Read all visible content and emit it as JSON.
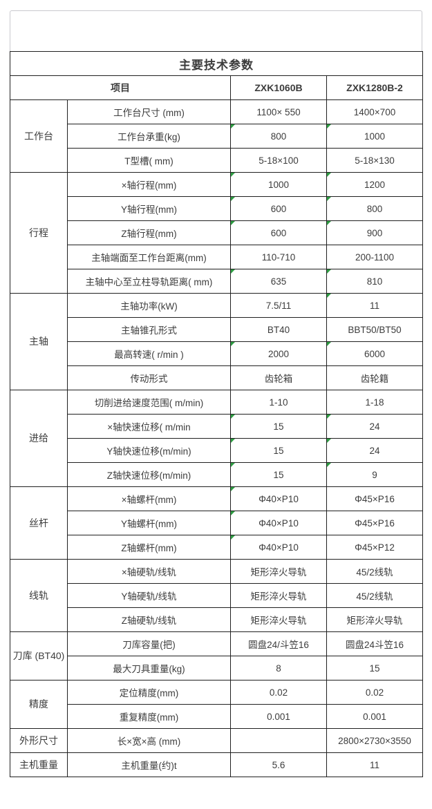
{
  "page": {
    "background": "#ffffff",
    "card_border_color": "#c9c9ce",
    "table_border_color": "#1f1f1f",
    "text_color": "#3c3c3c",
    "green_marker_color": "#2f9e44",
    "green_marker_meaning": "number-stored-as-text-indicator"
  },
  "table": {
    "title": "主要技术参数",
    "header": {
      "item_label": "项目",
      "model1": "ZXK1060B",
      "model2": "ZXK1280B-2"
    },
    "sections": [
      {
        "category": "工作台",
        "rows": [
          {
            "label": "工作台尺寸 (mm)",
            "v1": "1100× 550",
            "v2": "1400×700",
            "m1": false,
            "m2": false
          },
          {
            "label": "工作台承重(kg)",
            "v1": "800",
            "v2": "1000",
            "m1": true,
            "m2": true
          },
          {
            "label": "T型槽( mm)",
            "v1": "5-18×100",
            "v2": "5-18×130",
            "m1": false,
            "m2": false
          }
        ]
      },
      {
        "category": "行程",
        "rows": [
          {
            "label": "×轴行程(mm)",
            "v1": "1000",
            "v2": "1200",
            "m1": true,
            "m2": true
          },
          {
            "label": "Y轴行程(mm)",
            "v1": "600",
            "v2": "800",
            "m1": true,
            "m2": true
          },
          {
            "label": "Z轴行程(mm)",
            "v1": "600",
            "v2": "900",
            "m1": true,
            "m2": true
          },
          {
            "label": "主轴端面至工作台距离(mm)",
            "v1": "110-710",
            "v2": "200-1100",
            "m1": false,
            "m2": false
          },
          {
            "label": "主轴中心至立柱导轨距离( mm)",
            "v1": "635",
            "v2": "810",
            "m1": true,
            "m2": true
          }
        ]
      },
      {
        "category": "主轴",
        "rows": [
          {
            "label": "主轴功率(kW)",
            "v1": "7.5/11",
            "v2": "11",
            "m1": false,
            "m2": true
          },
          {
            "label": "主轴锥孔形式",
            "v1": "BT40",
            "v2": "BBT50/BT50",
            "m1": false,
            "m2": false
          },
          {
            "label": "最高转速( r/min )",
            "v1": "2000",
            "v2": "6000",
            "m1": true,
            "m2": true
          },
          {
            "label": "传动形式",
            "v1": "齿轮箱",
            "v2": "齿轮籍",
            "m1": false,
            "m2": false
          }
        ]
      },
      {
        "category": "进给",
        "rows": [
          {
            "label": "切削进给速度范围( m/min)",
            "v1": "1-10",
            "v2": "1-18",
            "m1": false,
            "m2": false
          },
          {
            "label": "×轴快速位移( m/min",
            "v1": "15",
            "v2": "24",
            "m1": true,
            "m2": true
          },
          {
            "label": "Y轴快速位移(m/min)",
            "v1": "15",
            "v2": "24",
            "m1": true,
            "m2": true
          },
          {
            "label": "Z轴快速位移(m/min)",
            "v1": "15",
            "v2": "9",
            "m1": true,
            "m2": true
          }
        ]
      },
      {
        "category": "丝杆",
        "rows": [
          {
            "label": "×轴螺杆(mm)",
            "v1": "Φ40×P10",
            "v2": "Φ45×P16",
            "m1": true,
            "m2": false
          },
          {
            "label": "Y轴螺杆(mm)",
            "v1": "Φ40×P10",
            "v2": "Φ45×P16",
            "m1": true,
            "m2": false
          },
          {
            "label": "Z轴螺杆(mm)",
            "v1": "Φ40×P10",
            "v2": "Φ45×P12",
            "m1": true,
            "m2": false
          }
        ]
      },
      {
        "category": "线轨",
        "rows": [
          {
            "label": "×轴硬轨/线轨",
            "v1": "矩形淬火导轨",
            "v2": "45/2线轨",
            "m1": false,
            "m2": false
          },
          {
            "label": "Y轴硬轨/线轨",
            "v1": "矩形淬火导轨",
            "v2": "45/2线轨",
            "m1": false,
            "m2": false
          },
          {
            "label": "Z轴硬轨/线轨",
            "v1": "矩形淬火导轨",
            "v2": "矩形淬火导轨",
            "m1": false,
            "m2": false
          }
        ]
      },
      {
        "category": "刀库\n(BT40)",
        "rows": [
          {
            "label": "刀库容量(把)",
            "v1": "圆盘24/斗笠16",
            "v2": "圆盘24斗笠16",
            "m1": false,
            "m2": false
          },
          {
            "label": "最大刀具重量(kg)",
            "v1": "8",
            "v2": "15",
            "m1": false,
            "m2": false
          }
        ]
      },
      {
        "category": "精度",
        "rows": [
          {
            "label": "定位精度(mm)",
            "v1": "0.02",
            "v2": "0.02",
            "m1": false,
            "m2": false
          },
          {
            "label": "重复精度(mm)",
            "v1": "0.001",
            "v2": "0.001",
            "m1": false,
            "m2": false
          }
        ]
      },
      {
        "category": "外形尺寸",
        "rows": [
          {
            "label": "长×宽×高 (mm)",
            "v1": "",
            "v2": "2800×2730×3550",
            "m1": false,
            "m2": false
          }
        ]
      },
      {
        "category": "主机重量",
        "rows": [
          {
            "label": "主机重量(约)t",
            "v1": "5.6",
            "v2": "11",
            "m1": false,
            "m2": false
          }
        ]
      }
    ]
  }
}
